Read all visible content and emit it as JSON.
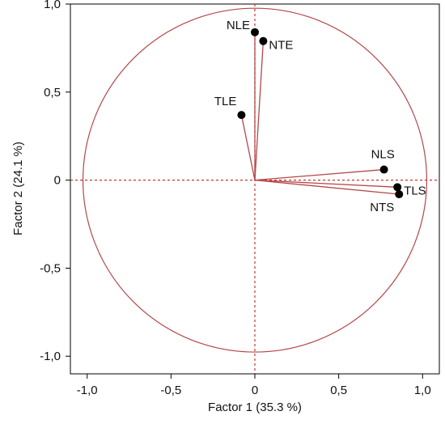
{
  "chart_data": {
    "type": "scatter",
    "subtype": "pca-correlation-circle",
    "xlabel": "Factor 1  (35.3 %)",
    "ylabel": "Factor 2  (24.1 %)",
    "xlim": [
      -1.1,
      1.1
    ],
    "ylim": [
      -1.1,
      1.0
    ],
    "x_ticks": [
      -1.0,
      -0.5,
      0,
      0.5,
      1.0
    ],
    "x_tick_labels": [
      "-1,0",
      "-0,5",
      "0",
      "0,5",
      "1,0"
    ],
    "y_ticks": [
      -1.0,
      -0.5,
      0,
      0.5,
      1.0
    ],
    "y_tick_labels": [
      "-1,0",
      "-0,5",
      "0",
      "0,5",
      "1,0"
    ],
    "grid": false,
    "unit_circle": true,
    "points": [
      {
        "label": "NLE",
        "x": 0.0,
        "y": 0.84
      },
      {
        "label": "NTE",
        "x": 0.05,
        "y": 0.79
      },
      {
        "label": "TLE",
        "x": -0.08,
        "y": 0.37
      },
      {
        "label": "NLS",
        "x": 0.77,
        "y": 0.06
      },
      {
        "label": "TLS",
        "x": 0.85,
        "y": -0.04
      },
      {
        "label": "NTS",
        "x": 0.86,
        "y": -0.08
      }
    ],
    "colors": {
      "vector": "#b5474b",
      "circle": "#b5474b",
      "point": "#000000",
      "zero_line": "#c0392b"
    }
  }
}
